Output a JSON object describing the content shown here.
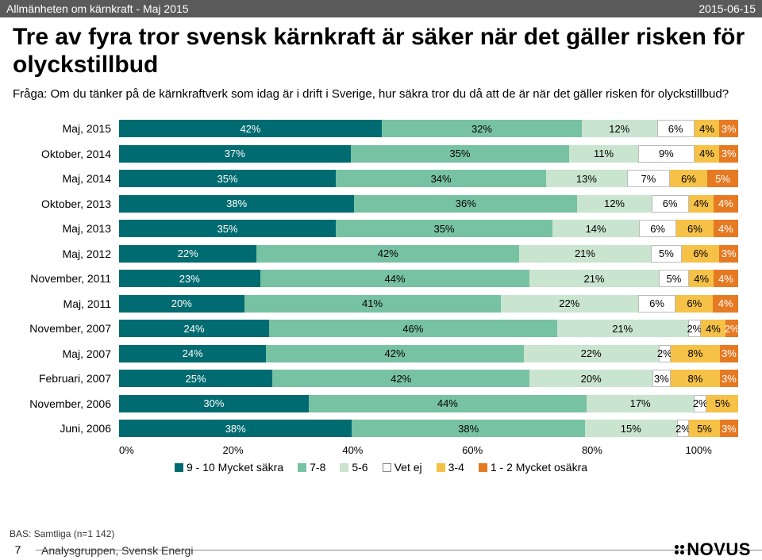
{
  "header": {
    "left": "Allmänheten om kärnkraft - Maj 2015",
    "right": "2015-06-15"
  },
  "title": "Tre av fyra tror svensk kärnkraft är säker när det gäller risken för olyckstillbud",
  "question": "Fråga: Om du tänker på de kärnkraftverk som idag är i drift i Sverige, hur säkra tror du då att de är när det gäller risken för olyckstillbud?",
  "colors": {
    "s1": "#006b70",
    "s2": "#78c2a4",
    "s3": "#c9e4cf",
    "s4": "#ffffff",
    "s5": "#f5c147",
    "s6": "#e67a23",
    "text_light": "#ffffff",
    "text_dark": "#000000"
  },
  "chart": {
    "rows": [
      {
        "label": "Maj, 2015",
        "vals": [
          42,
          32,
          12,
          6,
          4,
          3
        ]
      },
      {
        "label": "Oktober, 2014",
        "vals": [
          37,
          35,
          11,
          9,
          4,
          3
        ]
      },
      {
        "label": "Maj, 2014",
        "vals": [
          35,
          34,
          13,
          7,
          6,
          5
        ]
      },
      {
        "label": "Oktober, 2013",
        "vals": [
          38,
          36,
          12,
          6,
          4,
          4
        ]
      },
      {
        "label": "Maj, 2013",
        "vals": [
          35,
          35,
          14,
          6,
          6,
          4
        ]
      },
      {
        "label": "Maj, 2012",
        "vals": [
          22,
          42,
          21,
          5,
          6,
          3
        ]
      },
      {
        "label": "November, 2011",
        "vals": [
          23,
          44,
          21,
          5,
          4,
          4
        ]
      },
      {
        "label": "Maj, 2011",
        "vals": [
          20,
          41,
          22,
          6,
          6,
          4
        ]
      },
      {
        "label": "November, 2007",
        "vals": [
          24,
          46,
          21,
          2,
          4,
          2
        ]
      },
      {
        "label": "Maj, 2007",
        "vals": [
          24,
          42,
          22,
          2,
          8,
          3
        ]
      },
      {
        "label": "Februari, 2007",
        "vals": [
          25,
          42,
          20,
          3,
          8,
          3
        ]
      },
      {
        "label": "November, 2006",
        "vals": [
          30,
          44,
          17,
          2,
          5,
          0
        ]
      },
      {
        "label": "Juni, 2006",
        "vals": [
          38,
          38,
          15,
          2,
          5,
          3
        ]
      }
    ],
    "xaxis": [
      "0%",
      "20%",
      "40%",
      "60%",
      "80%",
      "100%"
    ],
    "legend": [
      {
        "color": "#006b70",
        "label": "9 - 10 Mycket säkra"
      },
      {
        "color": "#78c2a4",
        "label": "7-8"
      },
      {
        "color": "#c9e4cf",
        "label": "5-6"
      },
      {
        "color": "#ffffff",
        "label": "Vet ej",
        "border": "#888"
      },
      {
        "color": "#f5c147",
        "label": "3-4"
      },
      {
        "color": "#e67a23",
        "label": "1 - 2 Mycket osäkra"
      }
    ]
  },
  "footer": {
    "bas": "BAS: Samtliga (n=1 142)",
    "page": "7",
    "org": "Analysgruppen, Svensk Energi",
    "logo": "NOVUS"
  }
}
